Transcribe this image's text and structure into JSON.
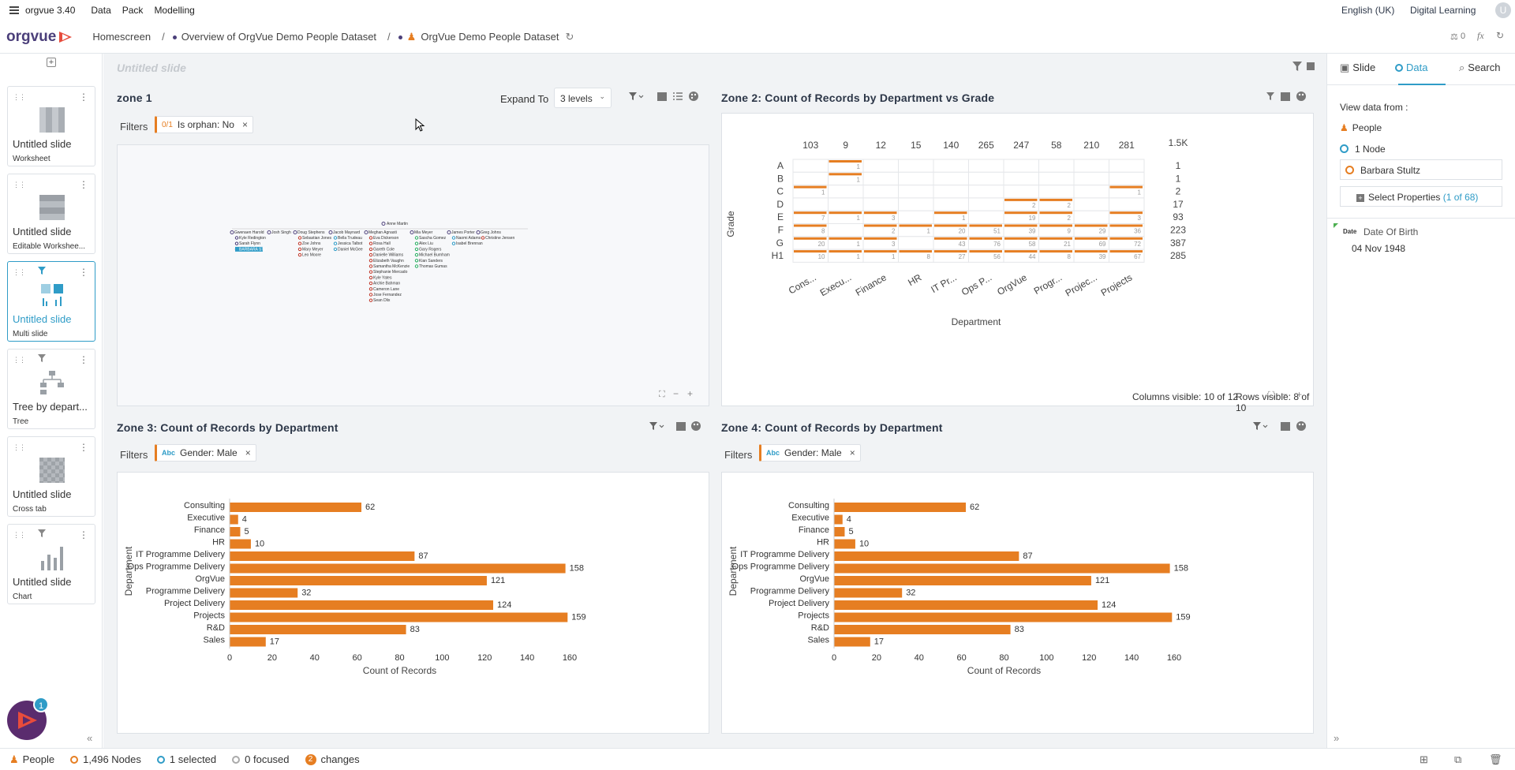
{
  "app": {
    "name": "orgvue 3.40",
    "menu": [
      "Data",
      "Pack",
      "Modelling"
    ],
    "language": "English (UK)",
    "learning": "Digital Learning",
    "user_initial": "U"
  },
  "breadcrumb": {
    "home": "Homescreen",
    "item1": "Overview of OrgVue Demo People Dataset",
    "item2": "OrgVue Demo People Dataset",
    "counter": "0"
  },
  "logo": "orgvue",
  "slides": [
    {
      "title": "Untitled slide",
      "subtitle": "Worksheet"
    },
    {
      "title": "Untitled slide",
      "subtitle": "Editable Workshee..."
    },
    {
      "title": "Untitled slide",
      "subtitle": "Multi slide"
    },
    {
      "title": "Tree by depart...",
      "subtitle": "Tree"
    },
    {
      "title": "Untitled slide",
      "subtitle": "Cross tab"
    },
    {
      "title": "Untitled slide",
      "subtitle": "Chart"
    }
  ],
  "slide_title_placeholder": "Untitled slide",
  "badge_count": "1",
  "zone1": {
    "title": "zone 1",
    "expand_label": "Expand To",
    "expand_value": "3 levels",
    "filters_label": "Filters",
    "chip_count": "0/1",
    "chip_text": "Is orphan: No",
    "tree": {
      "root": "Anne Martin",
      "columns": [
        {
          "head": "Gwenaen Harold",
          "children": [
            "Kyle Redington",
            "Sarah Flynn",
            "BARBARA STU"
          ]
        },
        {
          "head": "Josh Singh",
          "children": []
        },
        {
          "head": "Doug Stephens",
          "children": [
            "Sebastian Jones",
            "Zoe Johns",
            "Mary Meyer",
            "Leo Moore"
          ]
        },
        {
          "head": "Jacob Maynard",
          "children": [
            "Bella Trudeau",
            "Jessica Talbot",
            "Daniel McGee"
          ]
        },
        {
          "head": "Meghan Agnasti",
          "children": [
            "Eva Dickerson",
            "Rosa Hall",
            "Gareth Cole",
            "Danielle Williams",
            "Elizabeth Vaughn",
            "Samantha McKenzie",
            "Stephanie Mercado",
            "Kyle Yates",
            "Archie Bahman",
            "Cameron Lane",
            "Jose Fernandez",
            "Sean Dlix"
          ]
        },
        {
          "head": "Mia Meyer",
          "children": [
            "Sascha Gomez",
            "Alex Liu",
            "Gary Rogers",
            "Michael Burnham",
            "Kian Sanders",
            "Thomas Gumas"
          ]
        },
        {
          "head": "James Porter",
          "children": [
            "Naomi Adams",
            "Isabel Brennan"
          ]
        },
        {
          "head": "Greg Johns",
          "children": [
            "Christine Jensen"
          ]
        }
      ]
    }
  },
  "zone2": {
    "title": "Zone 2: Count of Records by Department vs Grade",
    "xlabel": "Department",
    "ylabel": "Grade",
    "total": "1.5K",
    "col_totals": [
      "103",
      "9",
      "12",
      "15",
      "140",
      "265",
      "247",
      "58",
      "210",
      "281"
    ],
    "columns": [
      "Cons...",
      "Execu...",
      "Finance",
      "HR",
      "IT Pr...",
      "Ops P...",
      "OrgVue",
      "Progr...",
      "Projec...",
      "Projects"
    ],
    "rows": [
      "A",
      "B",
      "C",
      "D",
      "E",
      "F",
      "G",
      "H1"
    ],
    "row_totals": [
      "1",
      "1",
      "2",
      "17",
      "93",
      "223",
      "387",
      "285"
    ],
    "cells": [
      [
        "",
        "1",
        "",
        "",
        "",
        "",
        "",
        "",
        "",
        ""
      ],
      [
        "",
        "1",
        "",
        "",
        "",
        "",
        "",
        "",
        "",
        ""
      ],
      [
        "1",
        "",
        "",
        "",
        "",
        "",
        "",
        "",
        "",
        "1"
      ],
      [
        "",
        "",
        "",
        "",
        "",
        "",
        "2",
        "2",
        "",
        ""
      ],
      [
        "7",
        "1",
        "3",
        "",
        "1",
        "",
        "19",
        "2",
        "",
        "3"
      ],
      [
        "8",
        "",
        "2",
        "1",
        "20",
        "51",
        "39",
        "9",
        "29",
        "36"
      ],
      [
        "20",
        "1",
        "3",
        "",
        "43",
        "76",
        "58",
        "21",
        "69",
        "72"
      ],
      [
        "10",
        "1",
        "1",
        "8",
        "27",
        "56",
        "44",
        "8",
        "39",
        "67"
      ]
    ],
    "cols_visible": "Columns visible: 10 of 12",
    "rows_visible": "Rows visible: 8 of 10"
  },
  "zone3": {
    "title": "Zone 3: Count of Records by Department",
    "filters_label": "Filters",
    "chip_prefix": "Abc",
    "chip_text": "Gender: Male"
  },
  "zone4": {
    "title": "Zone 4: Count of Records by Department",
    "filters_label": "Filters",
    "chip_prefix": "Abc",
    "chip_text": "Gender: Male"
  },
  "chart_data": [
    {
      "type": "bar",
      "orientation": "horizontal",
      "title": "Zone 3: Count of Records by Department",
      "categories": [
        "Consulting",
        "Executive",
        "Finance",
        "HR",
        "IT Programme Delivery",
        "Ops Programme Delivery",
        "OrgVue",
        "Programme Delivery",
        "Project Delivery",
        "Projects",
        "R&D",
        "Sales"
      ],
      "values": [
        62,
        4,
        5,
        10,
        87,
        158,
        121,
        32,
        124,
        159,
        83,
        17
      ],
      "xlabel": "Count of Records",
      "ylabel": "Department",
      "xlim": [
        0,
        160
      ],
      "xticks": [
        0,
        20,
        40,
        60,
        80,
        100,
        120,
        140,
        160
      ],
      "color": "#e67e22"
    },
    {
      "type": "bar",
      "orientation": "horizontal",
      "title": "Zone 4: Count of Records by Department",
      "categories": [
        "Consulting",
        "Executive",
        "Finance",
        "HR",
        "IT Programme Delivery",
        "Ops Programme Delivery",
        "OrgVue",
        "Programme Delivery",
        "Project Delivery",
        "Projects",
        "R&D",
        "Sales"
      ],
      "values": [
        62,
        4,
        5,
        10,
        87,
        158,
        121,
        32,
        124,
        159,
        83,
        17
      ],
      "xlabel": "Count of Records",
      "ylabel": "Department",
      "xlim": [
        0,
        160
      ],
      "xticks": [
        0,
        20,
        40,
        60,
        80,
        100,
        120,
        140,
        160
      ],
      "color": "#e67e22"
    }
  ],
  "right": {
    "tabs": [
      "Slide",
      "Data",
      "Search"
    ],
    "view_from": "View data from :",
    "dataset": "People",
    "node_count": "1 Node",
    "selected_node": "Barbara Stultz",
    "select_props": "Select Properties",
    "select_props_count": "(1 of 68)",
    "prop_type": "Date",
    "prop_name": "Date Of Birth",
    "prop_value": "04 Nov 1948"
  },
  "status": {
    "dataset": "People",
    "nodes": "1,496 Nodes",
    "selected": "1 selected",
    "focused": "0 focused",
    "changes_count": "2",
    "changes": "changes"
  },
  "colors": {
    "accent": "#e67e22",
    "brand": "#4b3f7a",
    "link": "#2f9cc7"
  }
}
